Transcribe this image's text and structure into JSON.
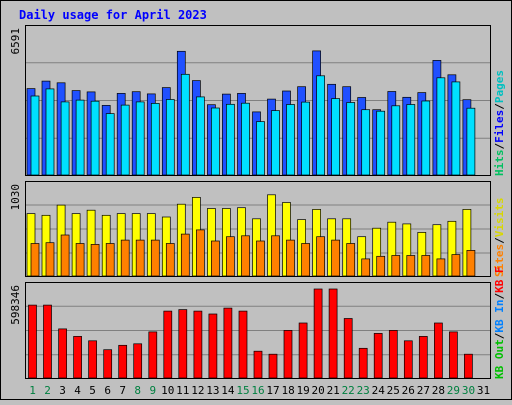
{
  "chart_data": [
    {
      "type": "bar",
      "title": "Daily usage for April 2023",
      "categories": [
        "1",
        "2",
        "3",
        "4",
        "5",
        "6",
        "7",
        "8",
        "9",
        "10",
        "11",
        "12",
        "13",
        "14",
        "15",
        "16",
        "17",
        "18",
        "19",
        "20",
        "21",
        "22",
        "23",
        "24",
        "25",
        "26",
        "27",
        "28",
        "29",
        "30",
        "31"
      ],
      "weekend_days": [
        "1",
        "2",
        "8",
        "9",
        "15",
        "16",
        "22",
        "23",
        "29",
        "30"
      ],
      "y_tick_label": "6591",
      "ylim": [
        0,
        6591
      ],
      "legend": [
        {
          "label": "Pages",
          "color": "#00c0c0"
        },
        {
          "label": "Files",
          "color": "#0000ff"
        },
        {
          "label": "Hits",
          "color": "#00c060"
        }
      ],
      "legend_separator": "/",
      "series": [
        {
          "name": "Hits",
          "color": "#2050ff",
          "values": [
            3980,
            4330,
            4250,
            3890,
            3830,
            3210,
            3760,
            3840,
            3740,
            4030,
            5700,
            4350,
            3240,
            3730,
            3760,
            2910,
            3500,
            3870,
            4070,
            5720,
            4180,
            4070,
            3570,
            3010,
            3850,
            3580,
            3800,
            5280,
            4620,
            3470,
            null
          ]
        },
        {
          "name": "Files",
          "color": "#00e0ff",
          "values": [
            3640,
            3970,
            3370,
            3450,
            3400,
            2830,
            3220,
            3370,
            3300,
            3480,
            4640,
            3600,
            3090,
            3260,
            3310,
            2460,
            2970,
            3250,
            3360,
            4570,
            3520,
            3340,
            3010,
            2940,
            3190,
            3250,
            3410,
            4480,
            4290,
            3080,
            null
          ]
        }
      ]
    },
    {
      "type": "bar",
      "categories": [
        "1",
        "2",
        "3",
        "4",
        "5",
        "6",
        "7",
        "8",
        "9",
        "10",
        "11",
        "12",
        "13",
        "14",
        "15",
        "16",
        "17",
        "18",
        "19",
        "20",
        "21",
        "22",
        "23",
        "24",
        "25",
        "26",
        "27",
        "28",
        "29",
        "30",
        "31"
      ],
      "y_tick_label": "1030",
      "ylim": [
        0,
        1030
      ],
      "legend": [
        {
          "label": "Visits",
          "color": "#d8d800"
        },
        {
          "label": "Sites",
          "color": "#ff8000"
        }
      ],
      "legend_separator": "/",
      "series": [
        {
          "name": "Visits",
          "color": "#ffff00",
          "values": [
            730,
            710,
            830,
            730,
            770,
            710,
            730,
            730,
            730,
            690,
            840,
            920,
            790,
            790,
            800,
            670,
            950,
            860,
            660,
            780,
            670,
            670,
            460,
            560,
            630,
            610,
            510,
            600,
            640,
            780,
            null
          ]
        },
        {
          "name": "Sites",
          "color": "#ff8000",
          "values": [
            380,
            390,
            480,
            380,
            370,
            380,
            420,
            420,
            420,
            380,
            490,
            540,
            410,
            460,
            470,
            410,
            470,
            420,
            380,
            460,
            420,
            380,
            200,
            230,
            240,
            240,
            240,
            200,
            250,
            300,
            null
          ]
        }
      ]
    },
    {
      "type": "bar",
      "categories": [
        "1",
        "2",
        "3",
        "4",
        "5",
        "6",
        "7",
        "8",
        "9",
        "10",
        "11",
        "12",
        "13",
        "14",
        "15",
        "16",
        "17",
        "18",
        "19",
        "20",
        "21",
        "22",
        "23",
        "24",
        "25",
        "26",
        "27",
        "28",
        "29",
        "30",
        "31"
      ],
      "y_tick_label": "598346",
      "ylim": [
        0,
        598346
      ],
      "legend": [
        {
          "label": "KB F",
          "color": "#ff0000"
        },
        {
          "label": "KB In",
          "color": "#0080ff"
        },
        {
          "label": "KB Out",
          "color": "#00c000"
        }
      ],
      "legend_separator": "/",
      "series": [
        {
          "name": "KB F",
          "color": "#ff0000",
          "values": [
            490000,
            490000,
            330000,
            280000,
            250000,
            190000,
            220000,
            230000,
            310000,
            450000,
            460000,
            450000,
            430000,
            470000,
            450000,
            180000,
            160000,
            320000,
            370000,
            598346,
            598346,
            400000,
            200000,
            300000,
            320000,
            250000,
            280000,
            370000,
            310000,
            160000,
            null
          ]
        }
      ]
    }
  ]
}
